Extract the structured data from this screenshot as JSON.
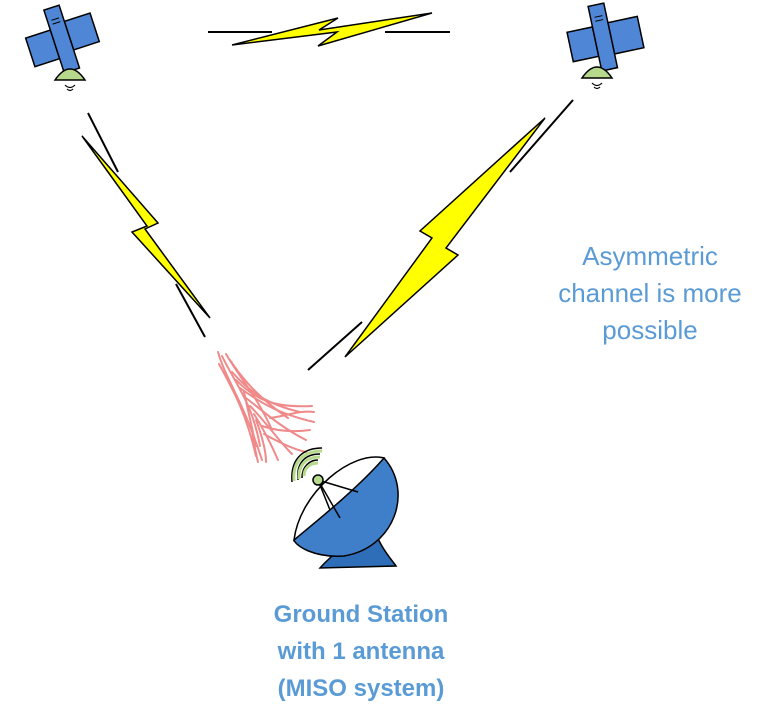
{
  "note": {
    "lines": [
      "Asymmetric",
      "channel is more",
      "possible"
    ]
  },
  "ground_station": {
    "label_lines": [
      "Ground Station",
      "with 1 antenna",
      "(MISO system)"
    ]
  },
  "satellites": [
    {
      "name": "satellite-left",
      "icon": "satellite-icon"
    },
    {
      "name": "satellite-right",
      "icon": "satellite-icon"
    }
  ],
  "links": [
    {
      "name": "inter-satellite-link",
      "icon": "lightning-bolt-icon"
    },
    {
      "name": "left-downlink",
      "icon": "lightning-bolt-icon"
    },
    {
      "name": "right-downlink",
      "icon": "lightning-bolt-icon"
    }
  ],
  "colors": {
    "text_blue": "#5b9bd5",
    "solar_panel": "#4f86d6",
    "dish": "#3f7fc9",
    "lightning": "#ffff00",
    "fade_red": "#f08a8a",
    "signal_green": "#b7d98b"
  }
}
